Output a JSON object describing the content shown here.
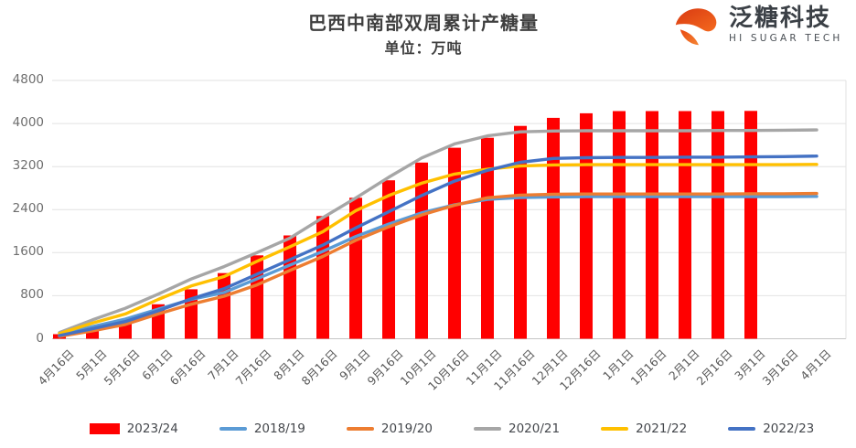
{
  "title": "巴西中南部双周累计产糖量",
  "subtitle": "单位：万吨",
  "logo": {
    "brand_cn": "泛糖科技",
    "brand_en": "HI SUGAR TECH",
    "icon": "sugar-swirl-icon",
    "icon_color_dark": "#d93a12",
    "icon_color_light": "#f4691e"
  },
  "palette": {
    "grid": "#e2e2e2",
    "axis_baseline": "#c6c6c6",
    "y_label": "#6e6e6e",
    "x_label": "#595959",
    "title_text": "#3f3f3f"
  },
  "chart_data": {
    "type": "bar",
    "subtype": "combo-bar-line",
    "title": "巴西中南部双周累计产糖量",
    "subtitle": "单位：万吨",
    "xlabel": "",
    "ylabel": "万吨",
    "ylim": [
      0,
      4800
    ],
    "ytick_step": 800,
    "yticks": [
      "0",
      "800",
      "1600",
      "2400",
      "3200",
      "4000",
      "4800"
    ],
    "grid": "horizontal",
    "legend_position": "bottom",
    "categories": [
      "4月16日",
      "5月1日",
      "5月16日",
      "6月1日",
      "6月16日",
      "7月1日",
      "7月16日",
      "8月1日",
      "8月16日",
      "9月1日",
      "9月16日",
      "10月1日",
      "10月16日",
      "11月1日",
      "11月16日",
      "12月1日",
      "12月16日",
      "1月1日",
      "1月16日",
      "2月1日",
      "2月16日",
      "3月1日",
      "3月16日",
      "4月1日"
    ],
    "series": [
      {
        "name": "2023/24",
        "type": "bar",
        "color": "#ff0000",
        "values": [
          85,
          160,
          365,
          640,
          920,
          1220,
          1550,
          1920,
          2280,
          2620,
          2945,
          3275,
          3550,
          3735,
          3955,
          4105,
          4190,
          4230,
          4230,
          4230,
          4230,
          4235,
          null,
          null
        ]
      },
      {
        "name": "2018/19",
        "type": "line",
        "color": "#5b9bd5",
        "values": [
          75,
          225,
          365,
          550,
          730,
          860,
          1115,
          1370,
          1625,
          1900,
          2130,
          2340,
          2490,
          2590,
          2625,
          2635,
          2640,
          2640,
          2640,
          2640,
          2640,
          2640,
          2640,
          2645
        ]
      },
      {
        "name": "2019/20",
        "type": "line",
        "color": "#ed7d31",
        "values": [
          45,
          145,
          265,
          460,
          640,
          790,
          1000,
          1270,
          1530,
          1830,
          2080,
          2300,
          2480,
          2620,
          2670,
          2685,
          2690,
          2690,
          2690,
          2690,
          2690,
          2695,
          2695,
          2700
        ]
      },
      {
        "name": "2020/21",
        "type": "line",
        "color": "#a6a6a6",
        "values": [
          115,
          350,
          565,
          830,
          1110,
          1340,
          1600,
          1870,
          2250,
          2615,
          3000,
          3360,
          3620,
          3770,
          3845,
          3860,
          3865,
          3865,
          3865,
          3865,
          3870,
          3870,
          3875,
          3880
        ]
      },
      {
        "name": "2021/22",
        "type": "line",
        "color": "#ffc000",
        "values": [
          95,
          290,
          460,
          730,
          980,
          1155,
          1440,
          1710,
          1990,
          2380,
          2660,
          2890,
          3060,
          3150,
          3210,
          3230,
          3235,
          3235,
          3235,
          3235,
          3235,
          3235,
          3235,
          3240
        ]
      },
      {
        "name": "2022/23",
        "type": "line",
        "color": "#4472c4",
        "values": [
          60,
          185,
          320,
          520,
          740,
          930,
          1200,
          1470,
          1740,
          2060,
          2360,
          2660,
          2930,
          3130,
          3280,
          3350,
          3365,
          3370,
          3370,
          3375,
          3375,
          3380,
          3385,
          3395
        ]
      }
    ]
  }
}
